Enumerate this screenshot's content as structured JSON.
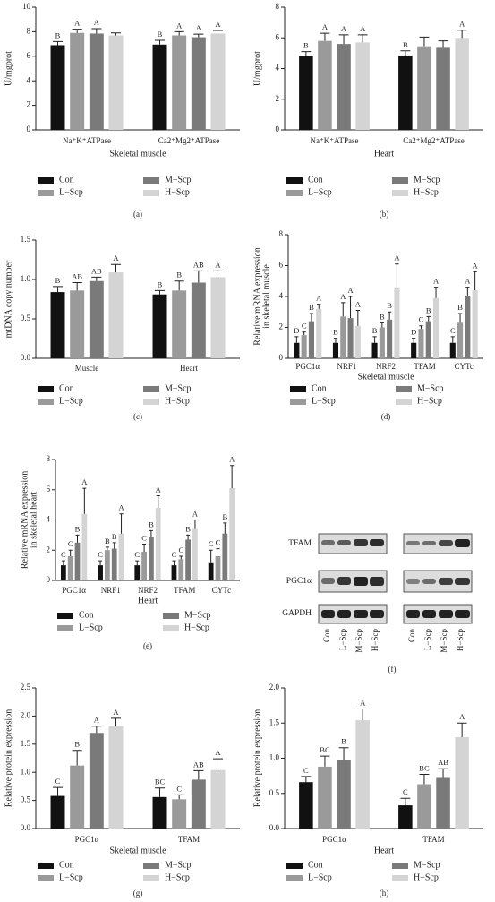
{
  "chart_data": [
    {
      "type": "bar",
      "label": "(a)",
      "ylabel": [
        "U/mgprot"
      ],
      "xlabel": "Skeletal muscle",
      "categories": [
        "Na⁺K⁺ATPase",
        "Ca2⁺Mg2⁺ATPase"
      ],
      "ylim": [
        0,
        10
      ],
      "yticks": [
        0,
        2,
        4,
        6,
        8,
        10
      ],
      "series": [
        {
          "name": "Con",
          "color": "#111111",
          "values": [
            6.9,
            6.95
          ],
          "errors": [
            0.3,
            0.35
          ],
          "letters": [
            "B",
            "B"
          ]
        },
        {
          "name": "L−Scp",
          "color": "#9a9a9a",
          "values": [
            7.9,
            7.7
          ],
          "errors": [
            0.3,
            0.3
          ],
          "letters": [
            "A",
            "A"
          ]
        },
        {
          "name": "M−Scp",
          "color": "#7a7a7a",
          "values": [
            7.85,
            7.55
          ],
          "errors": [
            0.4,
            0.25
          ],
          "letters": [
            "A",
            "A"
          ]
        },
        {
          "name": "H−Scp",
          "color": "#d4d4d4",
          "values": [
            7.7,
            7.85
          ],
          "errors": [
            0.2,
            0.25
          ],
          "letters": [
            null,
            "A"
          ]
        }
      ]
    },
    {
      "type": "bar",
      "label": "(b)",
      "ylabel": [
        "U/mgprot"
      ],
      "xlabel": "Heart",
      "categories": [
        "Na⁺K⁺ATPase",
        "Ca2⁺Mg2⁺ATPase"
      ],
      "ylim": [
        0,
        8
      ],
      "yticks": [
        0,
        2,
        4,
        6,
        8
      ],
      "series": [
        {
          "name": "Con",
          "color": "#111111",
          "values": [
            4.8,
            4.85
          ],
          "errors": [
            0.3,
            0.3
          ],
          "letters": [
            "B",
            "B"
          ]
        },
        {
          "name": "L−Scp",
          "color": "#9a9a9a",
          "values": [
            5.8,
            5.45
          ],
          "errors": [
            0.5,
            0.6
          ],
          "letters": [
            "A",
            null
          ]
        },
        {
          "name": "M−Scp",
          "color": "#7a7a7a",
          "values": [
            5.6,
            5.35
          ],
          "errors": [
            0.6,
            0.45
          ],
          "letters": [
            "A",
            null
          ]
        },
        {
          "name": "H−Scp",
          "color": "#d4d4d4",
          "values": [
            5.7,
            6.0
          ],
          "errors": [
            0.5,
            0.5
          ],
          "letters": [
            "A",
            "A"
          ]
        }
      ]
    },
    {
      "type": "bar",
      "label": "(c)",
      "ylabel": [
        "mtDNA copy number"
      ],
      "categories": [
        "Muscle",
        "Heart"
      ],
      "ylim": [
        0,
        1.5
      ],
      "yticks": [
        {
          "value": 0,
          "label": "0.0"
        },
        0.5,
        {
          "value": 1,
          "label": "1.0"
        },
        1.5
      ],
      "series": [
        {
          "name": "Con",
          "color": "#111111",
          "values": [
            0.84,
            0.81
          ],
          "errors": [
            0.07,
            0.05
          ],
          "letters": [
            "B",
            "B"
          ]
        },
        {
          "name": "L−Scp",
          "color": "#9a9a9a",
          "values": [
            0.86,
            0.86
          ],
          "errors": [
            0.1,
            0.12
          ],
          "letters": [
            "AB",
            "B"
          ]
        },
        {
          "name": "M−Scp",
          "color": "#7a7a7a",
          "values": [
            0.98,
            0.96
          ],
          "errors": [
            0.05,
            0.15
          ],
          "letters": [
            "AB",
            "AB"
          ]
        },
        {
          "name": "H−Scp",
          "color": "#d4d4d4",
          "values": [
            1.09,
            1.03
          ],
          "errors": [
            0.1,
            0.08
          ],
          "letters": [
            "A",
            "A"
          ]
        }
      ]
    },
    {
      "type": "bar",
      "label": "(d)",
      "ylabel": [
        "Relative mRNA expression",
        "in skeletal muscle"
      ],
      "xlabel": "Skeletal muscle",
      "categories": [
        "PGC1α",
        "NRF1",
        "NRF2",
        "TFAM",
        "CYTc"
      ],
      "ylim": [
        0,
        8
      ],
      "yticks": [
        0,
        2,
        4,
        6,
        8
      ],
      "series": [
        {
          "name": "Con",
          "color": "#111111",
          "values": [
            1.0,
            1.0,
            1.0,
            1.0,
            1.0
          ],
          "errors": [
            0.4,
            0.3,
            0.4,
            0.3,
            0.4
          ],
          "letters": [
            "D",
            "B",
            "B",
            "D",
            "C"
          ]
        },
        {
          "name": "L−Scp",
          "color": "#9a9a9a",
          "values": [
            1.5,
            2.7,
            2.0,
            1.9,
            2.3
          ],
          "errors": [
            0.2,
            0.9,
            0.3,
            0.2,
            0.6
          ],
          "letters": [
            "C",
            "A",
            "B",
            "C",
            "B"
          ]
        },
        {
          "name": "M−Scp",
          "color": "#7a7a7a",
          "values": [
            2.4,
            2.6,
            2.5,
            2.4,
            4.0
          ],
          "errors": [
            0.5,
            1.4,
            0.5,
            0.3,
            0.6
          ],
          "letters": [
            "B",
            "A",
            "B",
            "B",
            "A"
          ]
        },
        {
          "name": "H−Scp",
          "color": "#d4d4d4",
          "values": [
            3.2,
            2.1,
            4.6,
            3.9,
            4.4
          ],
          "errors": [
            0.3,
            1.0,
            1.5,
            0.7,
            1.2
          ],
          "letters": [
            "A",
            "A",
            "A",
            "A",
            "A"
          ]
        }
      ]
    },
    {
      "type": "bar",
      "label": "(e)",
      "ylabel": [
        "Relative mRNA expression",
        "in skeletal heart"
      ],
      "xlabel": "Heart",
      "categories": [
        "PGC1α",
        "NRF1",
        "NRF2",
        "TFAM",
        "CYTc"
      ],
      "ylim": [
        0,
        8
      ],
      "yticks": [
        0,
        2,
        4,
        6,
        8
      ],
      "series": [
        {
          "name": "Con",
          "color": "#111111",
          "values": [
            1.0,
            1.0,
            1.0,
            1.0,
            1.2
          ],
          "errors": [
            0.3,
            0.3,
            0.3,
            0.3,
            0.8
          ],
          "letters": [
            "C",
            "C",
            "C",
            "C",
            "C"
          ]
        },
        {
          "name": "L−Scp",
          "color": "#9a9a9a",
          "values": [
            1.6,
            2.0,
            1.9,
            1.4,
            1.6
          ],
          "errors": [
            0.4,
            0.2,
            0.5,
            0.2,
            0.5
          ],
          "letters": [
            "C",
            "B",
            "C",
            "C",
            "C"
          ]
        },
        {
          "name": "M−Scp",
          "color": "#7a7a7a",
          "values": [
            2.5,
            2.1,
            2.9,
            2.7,
            3.1
          ],
          "errors": [
            0.5,
            0.4,
            0.4,
            0.3,
            0.7
          ],
          "letters": [
            "B",
            "B",
            "B",
            "B",
            "B"
          ]
        },
        {
          "name": "H−Scp",
          "color": "#d4d4d4",
          "values": [
            4.4,
            3.1,
            4.8,
            3.4,
            6.1
          ],
          "errors": [
            1.7,
            1.3,
            0.8,
            0.6,
            1.5
          ],
          "letters": [
            "A",
            "A",
            "A",
            "A",
            "A"
          ]
        }
      ]
    },
    {
      "type": "bar",
      "label": "(g)",
      "ylabel": [
        "Relative protein expression"
      ],
      "xlabel": "Skeletal muscle",
      "categories": [
        "PGC1α",
        "TFAM"
      ],
      "ylim": [
        0,
        2.5
      ],
      "yticks": [
        {
          "value": 0,
          "label": "0.0"
        },
        0.5,
        {
          "value": 1,
          "label": "1.0"
        },
        1.5,
        {
          "value": 2,
          "label": "2.0"
        },
        2.5
      ],
      "series": [
        {
          "name": "Con",
          "color": "#111111",
          "values": [
            0.58,
            0.56
          ],
          "errors": [
            0.15,
            0.16
          ],
          "letters": [
            "C",
            "BC"
          ]
        },
        {
          "name": "L−Scp",
          "color": "#9a9a9a",
          "values": [
            1.12,
            0.52
          ],
          "errors": [
            0.27,
            0.08
          ],
          "letters": [
            "B",
            "C"
          ]
        },
        {
          "name": "M−Scp",
          "color": "#7a7a7a",
          "values": [
            1.7,
            0.87
          ],
          "errors": [
            0.12,
            0.16
          ],
          "letters": [
            "A",
            "AB"
          ]
        },
        {
          "name": "H−Scp",
          "color": "#d4d4d4",
          "values": [
            1.82,
            1.04
          ],
          "errors": [
            0.14,
            0.2
          ],
          "letters": [
            "A",
            "A"
          ]
        }
      ]
    },
    {
      "type": "bar",
      "label": "(h)",
      "ylabel": [
        "Relative protein expression"
      ],
      "xlabel": "Heart",
      "categories": [
        "PGC1α",
        "TFAM"
      ],
      "ylim": [
        0,
        2
      ],
      "yticks": [
        {
          "value": 0,
          "label": "0.0"
        },
        0.5,
        {
          "value": 1,
          "label": "1.0"
        },
        1.5,
        {
          "value": 2,
          "label": "2.0"
        }
      ],
      "series": [
        {
          "name": "Con",
          "color": "#111111",
          "values": [
            0.66,
            0.33
          ],
          "errors": [
            0.08,
            0.1
          ],
          "letters": [
            "C",
            "C"
          ]
        },
        {
          "name": "L−Scp",
          "color": "#9a9a9a",
          "values": [
            0.88,
            0.63
          ],
          "errors": [
            0.15,
            0.14
          ],
          "letters": [
            "BC",
            "BC"
          ]
        },
        {
          "name": "M−Scp",
          "color": "#7a7a7a",
          "values": [
            0.98,
            0.72
          ],
          "errors": [
            0.17,
            0.13
          ],
          "letters": [
            "B",
            "AB"
          ]
        },
        {
          "name": "H−Scp",
          "color": "#d4d4d4",
          "values": [
            1.54,
            1.3
          ],
          "errors": [
            0.16,
            0.2
          ],
          "letters": [
            "A",
            "A"
          ]
        }
      ]
    }
  ],
  "blot": {
    "label": "(f)",
    "rows": [
      "TFAM",
      "PGC1α",
      "GAPDH"
    ],
    "lanes": [
      [
        "Con",
        "L−Scp",
        "M−Scp",
        "H−Scp"
      ],
      [
        "Con",
        "L−Scp",
        "M−Scp",
        "H−Scp"
      ]
    ]
  }
}
